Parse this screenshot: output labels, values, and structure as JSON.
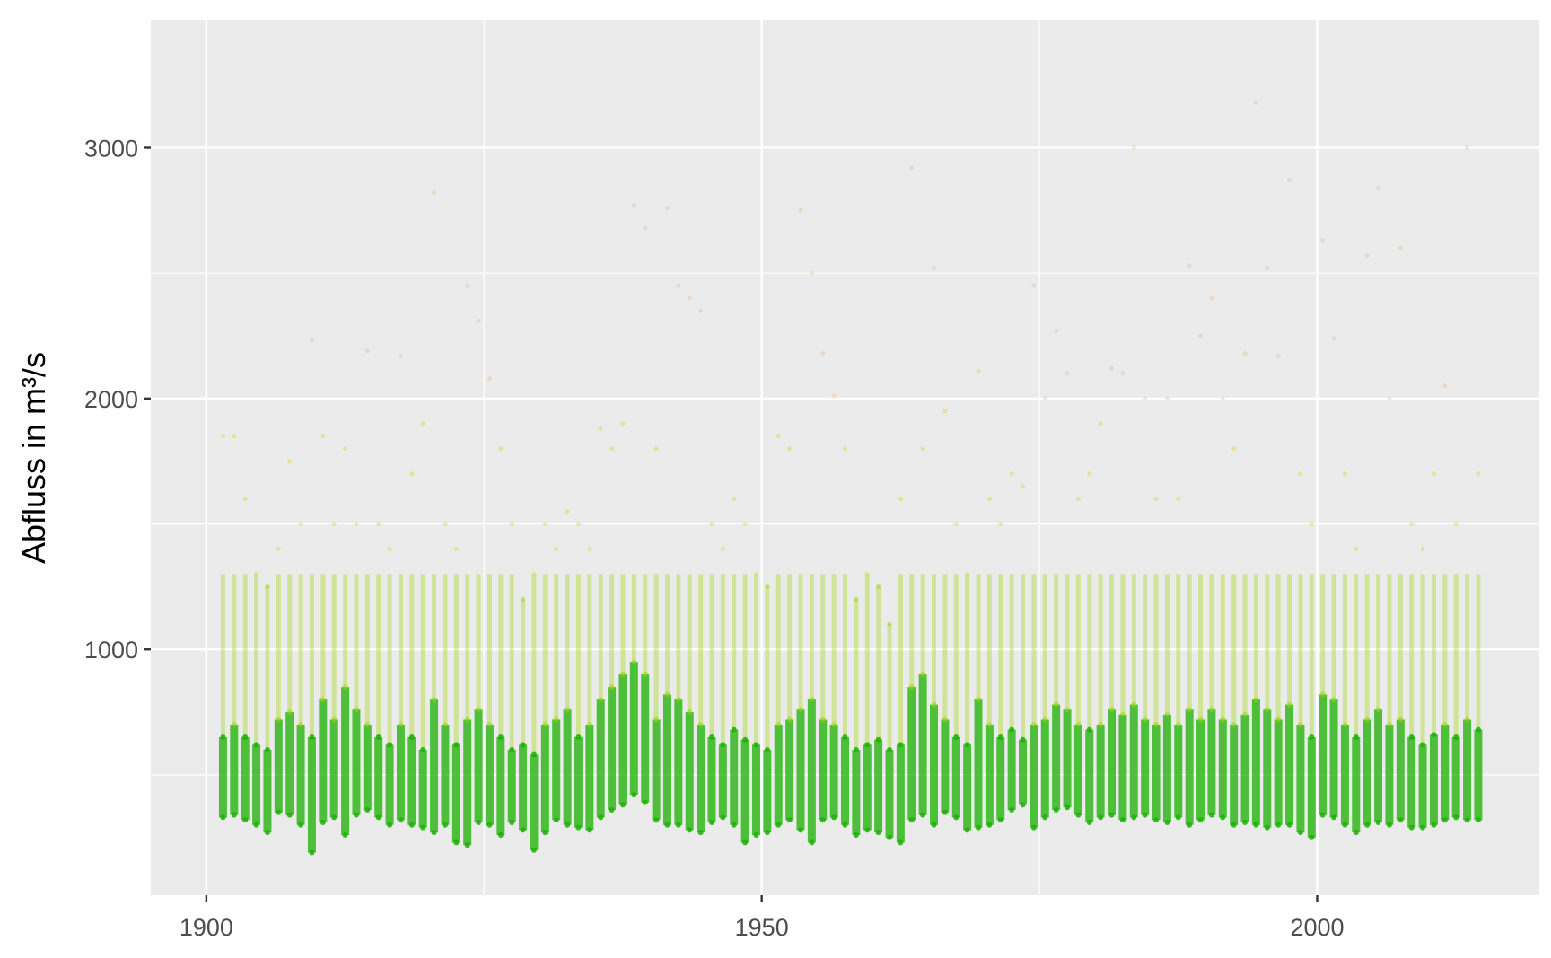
{
  "chart_data": {
    "type": "scatter",
    "title": "",
    "xlabel": "",
    "ylabel": "Abfluss in m³/s",
    "xlim": [
      1895,
      2020
    ],
    "ylim": [
      20,
      3510
    ],
    "x_ticks": [
      "1900",
      "1950",
      "2000"
    ],
    "x_tick_values": [
      1900,
      1950,
      2000
    ],
    "y_ticks": [
      "1000",
      "2000",
      "3000"
    ],
    "y_tick_values": [
      1000,
      2000,
      3000
    ],
    "grid": true,
    "background": "#ebebeb",
    "color_scale": {
      "low": "#19b000",
      "mid": "#9ad600",
      "high": "#e6d020",
      "extreme": "#e8b888"
    },
    "years": [
      1901,
      1902,
      1903,
      1904,
      1905,
      1906,
      1907,
      1908,
      1909,
      1910,
      1911,
      1912,
      1913,
      1914,
      1915,
      1916,
      1917,
      1918,
      1919,
      1920,
      1921,
      1922,
      1923,
      1924,
      1925,
      1926,
      1927,
      1928,
      1929,
      1930,
      1931,
      1932,
      1933,
      1934,
      1935,
      1936,
      1937,
      1938,
      1939,
      1940,
      1941,
      1942,
      1943,
      1944,
      1945,
      1946,
      1947,
      1948,
      1949,
      1950,
      1951,
      1952,
      1953,
      1954,
      1955,
      1956,
      1957,
      1958,
      1959,
      1960,
      1961,
      1962,
      1963,
      1964,
      1965,
      1966,
      1967,
      1968,
      1969,
      1970,
      1971,
      1972,
      1973,
      1974,
      1975,
      1976,
      1977,
      1978,
      1979,
      1980,
      1981,
      1982,
      1983,
      1984,
      1985,
      1986,
      1987,
      1988,
      1989,
      1990,
      1991,
      1992,
      1993,
      1994,
      1995,
      1996,
      1997,
      1998,
      1999,
      2000,
      2001,
      2002,
      2003,
      2004,
      2005,
      2006,
      2007,
      2008,
      2009,
      2010,
      2011,
      2012,
      2013,
      2014
    ],
    "annual_peak": [
      1850,
      1850,
      1600,
      1300,
      1250,
      1400,
      1750,
      1500,
      2230,
      1850,
      1500,
      1800,
      1500,
      2190,
      1500,
      1400,
      2170,
      1700,
      1900,
      2820,
      1500,
      1400,
      2450,
      2310,
      2080,
      1800,
      1500,
      1200,
      1300,
      1500,
      1400,
      1550,
      1500,
      1400,
      1880,
      1800,
      1900,
      2770,
      2680,
      1800,
      2760,
      2450,
      2400,
      2350,
      1500,
      1400,
      1600,
      1500,
      1300,
      1250,
      1850,
      1800,
      2750,
      2500,
      2180,
      2010,
      1800,
      1200,
      1300,
      1250,
      1100,
      1600,
      2920,
      1800,
      2520,
      1950,
      1500,
      1300,
      2110,
      1600,
      1500,
      1700,
      1650,
      2450,
      2000,
      2270,
      2100,
      1600,
      1700,
      1900,
      2120,
      2100,
      3000,
      2000,
      1600,
      2000,
      1600,
      2530,
      2250,
      2400,
      2000,
      1800,
      2180,
      3180,
      2520,
      2170,
      2870,
      1700,
      1500,
      2630,
      2240,
      1700,
      1400,
      2570,
      2840,
      2000,
      2600,
      1500,
      1400,
      1700,
      2050,
      1500,
      3000,
      1700
    ],
    "annual_typical": [
      650,
      700,
      650,
      620,
      600,
      720,
      750,
      700,
      650,
      800,
      720,
      850,
      760,
      700,
      650,
      620,
      700,
      650,
      600,
      800,
      700,
      620,
      720,
      760,
      700,
      650,
      600,
      620,
      580,
      700,
      720,
      760,
      650,
      700,
      800,
      850,
      900,
      950,
      900,
      720,
      820,
      800,
      750,
      700,
      650,
      620,
      680,
      640,
      620,
      600,
      700,
      720,
      760,
      800,
      720,
      700,
      650,
      600,
      620,
      640,
      600,
      620,
      850,
      900,
      780,
      720,
      650,
      620,
      800,
      700,
      650,
      680,
      640,
      700,
      720,
      780,
      760,
      700,
      680,
      700,
      760,
      740,
      780,
      720,
      700,
      740,
      700,
      760,
      720,
      760,
      720,
      700,
      740,
      800,
      760,
      720,
      780,
      700,
      650,
      820,
      800,
      700,
      650,
      720,
      760,
      700,
      720,
      650,
      620,
      660,
      700,
      650,
      720,
      680
    ],
    "annual_low": [
      330,
      340,
      320,
      300,
      270,
      350,
      340,
      300,
      190,
      310,
      330,
      260,
      340,
      360,
      330,
      300,
      320,
      300,
      290,
      270,
      300,
      230,
      220,
      310,
      300,
      260,
      310,
      280,
      200,
      270,
      320,
      300,
      290,
      280,
      330,
      360,
      380,
      420,
      390,
      320,
      300,
      300,
      280,
      270,
      310,
      330,
      300,
      230,
      260,
      270,
      300,
      320,
      280,
      230,
      320,
      330,
      300,
      260,
      280,
      270,
      250,
      230,
      320,
      340,
      300,
      350,
      330,
      280,
      290,
      300,
      320,
      360,
      380,
      290,
      330,
      360,
      370,
      340,
      310,
      330,
      340,
      320,
      330,
      340,
      320,
      310,
      330,
      300,
      320,
      340,
      330,
      300,
      310,
      300,
      290,
      300,
      300,
      270,
      250,
      340,
      330,
      300,
      270,
      300,
      310,
      300,
      320,
      290,
      290,
      300,
      320,
      330,
      320,
      320
    ]
  }
}
